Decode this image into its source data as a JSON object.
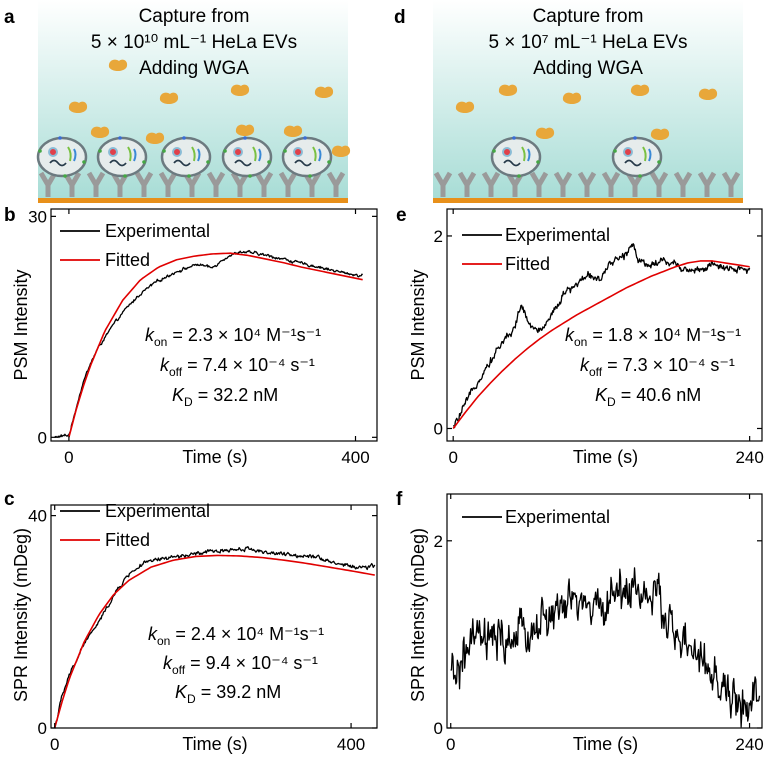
{
  "figure": {
    "panels": {
      "a": {
        "letter": "a",
        "line1": "Capture from",
        "line2": "5 × 10¹⁰ mL⁻¹ HeLa EVs",
        "line3": "Adding WGA"
      },
      "d": {
        "letter": "d",
        "line1": "Capture from",
        "line2": "5 × 10⁷ mL⁻¹ HeLa EVs",
        "line3": "Adding WGA"
      }
    },
    "colors": {
      "experimental": "#000000",
      "fitted": "#e00000",
      "liquid_top": "#ffffff",
      "liquid_bottom": "#a6dcd5",
      "substrate": "#e8901a",
      "antibody": "#9a9a9a",
      "wga": "#e8a73a"
    }
  },
  "chart_data": [
    {
      "id": "b",
      "letter": "b",
      "type": "line",
      "xlabel": "Time (s)",
      "ylabel": "PSM Intensity",
      "xlim": [
        -25,
        430
      ],
      "ylim": [
        -0.5,
        31
      ],
      "xticks": [
        {
          "v": 0,
          "label": "0"
        },
        {
          "v": 400,
          "label": "400"
        }
      ],
      "yticks": [
        {
          "v": 0,
          "label": "0"
        },
        {
          "v": 30,
          "label": "30"
        }
      ],
      "legend": [
        {
          "key": "experimental",
          "label": "Experimental"
        },
        {
          "key": "fitted",
          "label": "Fitted"
        }
      ],
      "annotation": {
        "kon_val": " = 2.3 × 10⁴ M⁻¹s⁻¹",
        "koff_val": " = 7.4 × 10⁻⁴ s⁻¹",
        "KD_val": " = 32.2 nM"
      },
      "series": [
        {
          "name": "Experimental",
          "key": "experimental",
          "noise": 0.25,
          "x": [
            -20,
            0,
            5,
            10,
            20,
            30,
            40,
            60,
            80,
            100,
            120,
            150,
            180,
            200,
            210,
            220,
            240,
            260,
            280,
            300,
            320,
            350,
            380,
            410
          ],
          "y": [
            0,
            0.3,
            2,
            4,
            7.5,
            10,
            12,
            15,
            17.5,
            19.5,
            21,
            22.5,
            23.5,
            23,
            23.8,
            24.5,
            25.2,
            25,
            24.6,
            24.2,
            23.7,
            23.1,
            22.4,
            21.9
          ]
        },
        {
          "name": "Fitted",
          "key": "fitted",
          "noise": 0,
          "x": [
            0,
            10,
            20,
            30,
            50,
            75,
            100,
            125,
            150,
            175,
            200,
            225,
            250,
            275,
            300,
            325,
            350,
            375,
            410
          ],
          "y": [
            0,
            3.7,
            6.9,
            9.7,
            14.4,
            18.6,
            21.4,
            23.1,
            24.1,
            24.6,
            24.9,
            25.0,
            24.7,
            24.2,
            23.7,
            23.1,
            22.6,
            22.1,
            21.4
          ]
        }
      ]
    },
    {
      "id": "c",
      "letter": "c",
      "type": "line",
      "xlabel": "Time (s)",
      "ylabel": "SPR Intensity (mDeg)",
      "xlim": [
        -5,
        435
      ],
      "ylim": [
        0,
        42
      ],
      "xticks": [
        {
          "v": 0,
          "label": "0"
        },
        {
          "v": 400,
          "label": "400"
        }
      ],
      "yticks": [
        {
          "v": 0,
          "label": "0"
        },
        {
          "v": 40,
          "label": "40"
        }
      ],
      "legend": [
        {
          "key": "experimental",
          "label": "Experimental"
        },
        {
          "key": "fitted",
          "label": "Fitted"
        }
      ],
      "annotation": {
        "kon_val": " = 2.4 × 10⁴ M⁻¹s⁻¹",
        "koff_val": " = 9.4 × 10⁻⁴ s⁻¹",
        "KD_val": " = 39.2 nM"
      },
      "series": [
        {
          "name": "Experimental",
          "key": "experimental",
          "noise": 0.5,
          "x": [
            0,
            10,
            20,
            40,
            60,
            80,
            100,
            120,
            150,
            180,
            200,
            230,
            260,
            290,
            320,
            350,
            380,
            410,
            432
          ],
          "y": [
            0,
            6,
            10,
            16,
            20,
            25,
            29,
            31,
            32,
            32.5,
            33,
            33.5,
            33.8,
            33,
            32.5,
            32.5,
            31,
            30.2,
            30.5
          ]
        },
        {
          "name": "Fitted",
          "key": "fitted",
          "noise": 0,
          "x": [
            0,
            10,
            20,
            40,
            60,
            80,
            100,
            130,
            160,
            190,
            220,
            250,
            280,
            310,
            340,
            370,
            400,
            432
          ],
          "y": [
            0,
            5.0,
            9.4,
            16.3,
            21.4,
            25.2,
            27.8,
            30.3,
            31.6,
            32.3,
            32.5,
            32.4,
            32.1,
            31.6,
            31.0,
            30.3,
            29.6,
            28.8
          ]
        }
      ]
    },
    {
      "id": "e",
      "letter": "e",
      "type": "line",
      "xlabel": "Time (s)",
      "ylabel": "PSM Intensity",
      "xlim": [
        -5,
        250
      ],
      "ylim": [
        -0.13,
        2.28
      ],
      "xticks": [
        {
          "v": 0,
          "label": "0"
        },
        {
          "v": 240,
          "label": "240"
        }
      ],
      "yticks": [
        {
          "v": 0,
          "label": "0"
        },
        {
          "v": 2,
          "label": "2"
        }
      ],
      "legend": [
        {
          "key": "experimental",
          "label": "Experimental"
        },
        {
          "key": "fitted",
          "label": "Fitted"
        }
      ],
      "annotation": {
        "kon_val": " = 1.8 × 10⁴ M⁻¹s⁻¹",
        "koff_val": " = 7.3 × 10⁻⁴ s⁻¹",
        "KD_val": " = 40.6 nM"
      },
      "series": [
        {
          "name": "Experimental",
          "key": "experimental",
          "noise": 0.05,
          "x": [
            0,
            10,
            20,
            30,
            40,
            50,
            55,
            60,
            70,
            80,
            90,
            100,
            110,
            120,
            130,
            140,
            145,
            150,
            160,
            170,
            180,
            190,
            200,
            210,
            220,
            230,
            240
          ],
          "y": [
            0,
            0.25,
            0.5,
            0.7,
            0.9,
            1.05,
            1.3,
            1.1,
            1.0,
            1.2,
            1.4,
            1.5,
            1.6,
            1.55,
            1.75,
            1.8,
            1.95,
            1.75,
            1.7,
            1.75,
            1.7,
            1.65,
            1.65,
            1.7,
            1.65,
            1.65,
            1.65
          ]
        },
        {
          "name": "Fitted",
          "key": "fitted",
          "noise": 0,
          "x": [
            0,
            10,
            20,
            30,
            40,
            50,
            60,
            70,
            80,
            90,
            100,
            110,
            120,
            130,
            140,
            150,
            160,
            170,
            180,
            190,
            200,
            210,
            220,
            230,
            240
          ],
          "y": [
            0,
            0.17,
            0.33,
            0.47,
            0.6,
            0.72,
            0.83,
            0.93,
            1.02,
            1.1,
            1.18,
            1.25,
            1.32,
            1.39,
            1.46,
            1.52,
            1.58,
            1.63,
            1.68,
            1.72,
            1.74,
            1.74,
            1.72,
            1.7,
            1.68
          ]
        }
      ]
    },
    {
      "id": "f",
      "letter": "f",
      "type": "line",
      "xlabel": "Time (s)",
      "ylabel": "SPR Intensity (mDeg)",
      "xlim": [
        -3,
        250
      ],
      "ylim": [
        0,
        2.5
      ],
      "xticks": [
        {
          "v": 0,
          "label": "0"
        },
        {
          "v": 240,
          "label": "240"
        }
      ],
      "yticks": [
        {
          "v": 0,
          "label": "0"
        },
        {
          "v": 2,
          "label": "2"
        }
      ],
      "legend": [
        {
          "key": "experimental",
          "label": "Experimental"
        }
      ],
      "series": [
        {
          "name": "Experimental",
          "key": "experimental",
          "noise": 0.28,
          "x": [
            0,
            20,
            40,
            60,
            80,
            100,
            120,
            130,
            150,
            170,
            180,
            200,
            220,
            230,
            240,
            248
          ],
          "y": [
            0.5,
            0.95,
            0.9,
            1.0,
            1.2,
            1.35,
            1.25,
            1.45,
            1.5,
            1.3,
            1.0,
            0.7,
            0.4,
            0.25,
            0.25,
            0.3
          ]
        }
      ]
    }
  ]
}
